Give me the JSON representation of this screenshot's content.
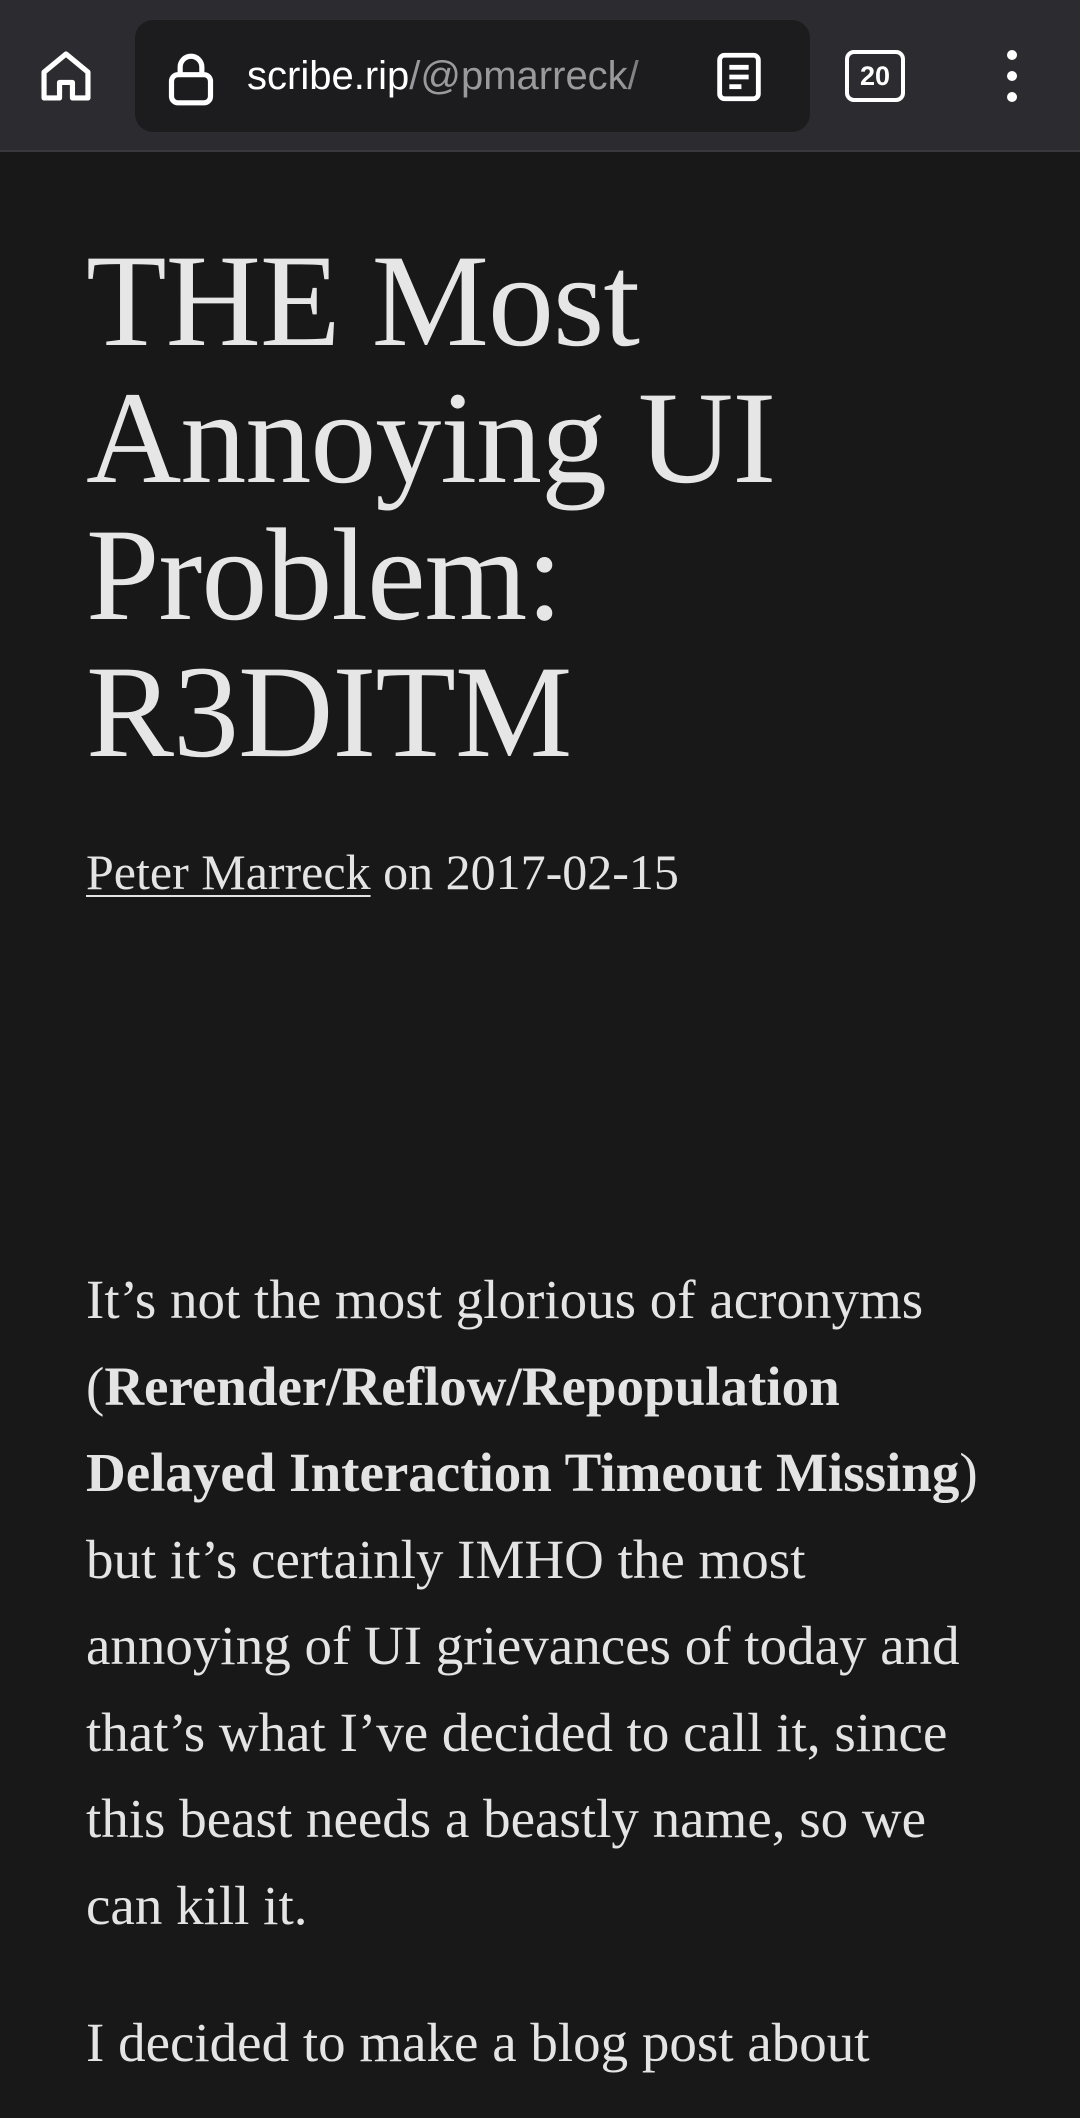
{
  "browser": {
    "url_domain": "scribe.rip",
    "url_path": "/@pmarreck/",
    "tab_count": "20",
    "icons": {
      "home": "home-icon",
      "lock": "lock-icon",
      "reader": "reader-mode-icon",
      "tabs": "tab-switcher-icon",
      "menu": "overflow-menu-icon"
    }
  },
  "article": {
    "title": "THE Most Annoying UI Problem: R3DITM",
    "author": "Peter Marreck",
    "date_prefix": " on ",
    "date": "2017-02-15",
    "paragraph1": {
      "before": "It’s not the most glorious of acronyms (",
      "bold": "Rerender/Reflow/Repopulation Delayed Interaction Timeout Missing",
      "after": ") but it’s certainly IMHO the most annoying of UI grievances of today and that’s what I’ve decided to call it, since this beast needs a beastly name, so we can kill it."
    },
    "paragraph2": "I decided to make a blog post about"
  },
  "colors": {
    "page_background": "#181818",
    "toolbar_background": "#2c2c30",
    "urlbar_background": "#1c1c1e",
    "text": "#e4e4e4"
  }
}
